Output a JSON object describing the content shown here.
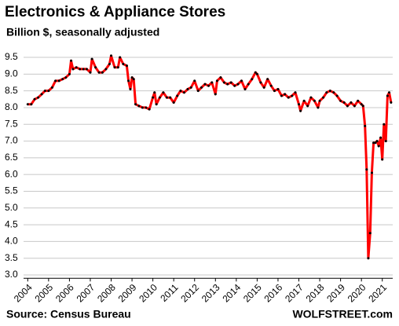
{
  "chart_data": {
    "type": "line",
    "title": "Electronics & Appliance Stores",
    "subtitle": "Billion $, seasonally adjusted",
    "source": "Source: Census Bureau",
    "credit": "WOLFSTREET.com",
    "x": [
      2004.0,
      2004.17,
      2004.33,
      2004.5,
      2004.67,
      2004.83,
      2005.0,
      2005.17,
      2005.33,
      2005.5,
      2005.67,
      2005.83,
      2006.0,
      2006.08,
      2006.17,
      2006.33,
      2006.5,
      2006.67,
      2006.83,
      2007.0,
      2007.08,
      2007.25,
      2007.42,
      2007.58,
      2007.75,
      2007.92,
      2008.0,
      2008.17,
      2008.33,
      2008.42,
      2008.58,
      2008.75,
      2008.83,
      2008.92,
      2009.0,
      2009.08,
      2009.17,
      2009.33,
      2009.5,
      2009.67,
      2009.83,
      2010.0,
      2010.08,
      2010.17,
      2010.33,
      2010.5,
      2010.67,
      2010.83,
      2011.0,
      2011.17,
      2011.33,
      2011.5,
      2011.67,
      2011.83,
      2012.0,
      2012.17,
      2012.33,
      2012.5,
      2012.67,
      2012.83,
      2013.0,
      2013.08,
      2013.25,
      2013.42,
      2013.58,
      2013.75,
      2013.92,
      2014.08,
      2014.25,
      2014.42,
      2014.58,
      2014.75,
      2014.92,
      2015.0,
      2015.17,
      2015.33,
      2015.5,
      2015.67,
      2015.83,
      2016.0,
      2016.17,
      2016.33,
      2016.5,
      2016.67,
      2016.83,
      2017.0,
      2017.08,
      2017.25,
      2017.42,
      2017.58,
      2017.75,
      2017.92,
      2018.0,
      2018.17,
      2018.33,
      2018.5,
      2018.67,
      2018.83,
      2019.0,
      2019.17,
      2019.33,
      2019.5,
      2019.67,
      2019.83,
      2020.0,
      2020.08,
      2020.17,
      2020.25,
      2020.33,
      2020.42,
      2020.5,
      2020.58,
      2020.67,
      2020.75,
      2020.83,
      2020.92,
      2021.0,
      2021.08,
      2021.17,
      2021.25,
      2021.33,
      2021.42
    ],
    "values": [
      8.1,
      8.1,
      8.25,
      8.3,
      8.4,
      8.5,
      8.5,
      8.6,
      8.8,
      8.8,
      8.85,
      8.9,
      9.0,
      9.4,
      9.15,
      9.2,
      9.15,
      9.15,
      9.15,
      9.05,
      9.45,
      9.2,
      9.05,
      9.05,
      9.15,
      9.3,
      9.55,
      9.2,
      9.2,
      9.5,
      9.3,
      9.25,
      8.8,
      8.55,
      8.9,
      8.85,
      8.1,
      8.05,
      8.0,
      8.0,
      7.95,
      8.3,
      8.45,
      8.1,
      8.3,
      8.45,
      8.3,
      8.3,
      8.15,
      8.35,
      8.5,
      8.45,
      8.55,
      8.6,
      8.8,
      8.5,
      8.6,
      8.7,
      8.65,
      8.75,
      8.4,
      8.8,
      8.9,
      8.75,
      8.7,
      8.75,
      8.65,
      8.7,
      8.8,
      8.55,
      8.7,
      8.85,
      9.05,
      9.0,
      8.75,
      8.6,
      8.85,
      8.65,
      8.5,
      8.55,
      8.35,
      8.4,
      8.3,
      8.35,
      8.45,
      8.1,
      7.9,
      8.2,
      8.05,
      8.3,
      8.2,
      8.0,
      8.2,
      8.3,
      8.45,
      8.5,
      8.45,
      8.35,
      8.2,
      8.15,
      8.05,
      8.15,
      8.05,
      8.2,
      8.1,
      8.05,
      7.45,
      6.15,
      3.5,
      4.25,
      6.05,
      6.95,
      6.95,
      7.0,
      6.85,
      7.1,
      6.45,
      7.5,
      7.0,
      8.35,
      8.45,
      8.15
    ],
    "color": "#ff0000",
    "marker_color": "#000000",
    "xlim": [
      2003.8,
      2021.5
    ],
    "xticks": [
      2004,
      2005,
      2006,
      2007,
      2008,
      2009,
      2010,
      2011,
      2012,
      2013,
      2014,
      2015,
      2016,
      2017,
      2018,
      2019,
      2020,
      2021
    ],
    "ylim": [
      2.9,
      9.7
    ],
    "yticks": [
      {
        "value": 3,
        "label": "3.0"
      },
      3.5,
      {
        "value": 4,
        "label": "4.0"
      },
      4.5,
      {
        "value": 5,
        "label": "5.0"
      },
      5.5,
      {
        "value": 6,
        "label": "6.0"
      },
      6.5,
      {
        "value": 7,
        "label": "7.0"
      },
      7.5,
      {
        "value": 8,
        "label": "8.0"
      },
      8.5,
      {
        "value": 9,
        "label": "9.0"
      },
      9.5
    ],
    "grid": true
  }
}
